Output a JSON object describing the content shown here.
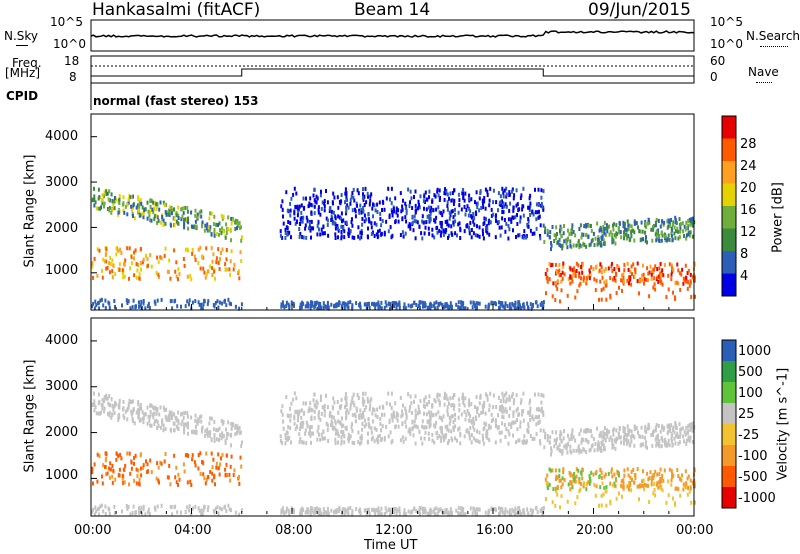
{
  "header": {
    "station": "Hankasalmi (fitACF)",
    "beam": "Beam 14",
    "date": "09/Jun/2015"
  },
  "panels": {
    "nsky_label": "N.Sky",
    "nsky_scale": {
      "top": "10^5",
      "bottom": "10^0"
    },
    "nsearch_label": "N.Search",
    "freq_label_top": "Freq.",
    "freq_label_unit": "[MHz]",
    "freq_scale": {
      "top": "18",
      "bottom": "8"
    },
    "nave_scale": {
      "top": "60",
      "bottom": "0"
    },
    "nave_label": "Nave",
    "cpid_label": "CPID",
    "cpid_text": "normal (fast stereo) 153"
  },
  "colors": {
    "power": [
      "#0000e6",
      "#2e5fb8",
      "#3c8a3c",
      "#6fae3a",
      "#e6d200",
      "#ffa020",
      "#ff5a00",
      "#e60000"
    ],
    "velocity": [
      "#e60000",
      "#ff5a00",
      "#f59a2a",
      "#f2c230",
      "#c4c4c4",
      "#5fc43a",
      "#2f9e45",
      "#2a5fb8"
    ]
  },
  "chart_data": [
    {
      "type": "heatmap",
      "title": "Power",
      "ylabel": "Slant Range [km]",
      "xlabel": "",
      "xlim": [
        "00:00",
        "00:00"
      ],
      "ylim": [
        180,
        4500
      ],
      "yticks": [
        "1000",
        "2000",
        "3000",
        "4000"
      ],
      "colorbar": {
        "label": "Power [dB]",
        "ticks": [
          "4",
          "8",
          "12",
          "16",
          "20",
          "24",
          "28"
        ],
        "range": [
          0,
          30
        ]
      },
      "echo_regions": [
        {
          "t0": 0.0,
          "t1": 6.0,
          "r0": 600,
          "r1": 2900,
          "level": 9,
          "note": "daytime band descending from 2700 km to 1900 km"
        },
        {
          "t0": 0.7,
          "t1": 5.6,
          "r0": 900,
          "r1": 1600,
          "level": 22,
          "note": "patches near 1000-1500 km"
        },
        {
          "t0": 7.5,
          "t1": 18.0,
          "r0": 1700,
          "r1": 3000,
          "level": 6,
          "note": "weak scattered echoes"
        },
        {
          "t0": 18.0,
          "t1": 24.0,
          "r0": 1400,
          "r1": 2200,
          "level": 12,
          "note": "band 1600-2100 km"
        },
        {
          "t0": 19.5,
          "t1": 23.0,
          "r0": 800,
          "r1": 1200,
          "level": 26,
          "note": "strong echoes near 1000 km"
        }
      ]
    },
    {
      "type": "heatmap",
      "title": "Velocity",
      "ylabel": "Slant Range [km]",
      "xlabel": "Time UT",
      "xlim": [
        "00:00",
        "00:00"
      ],
      "ylim": [
        180,
        4500
      ],
      "yticks": [
        "1000",
        "2000",
        "3000",
        "4000"
      ],
      "xticks": [
        "00:00",
        "04:00",
        "08:00",
        "12:00",
        "16:00",
        "20:00",
        "00:00"
      ],
      "colorbar": {
        "label": "Velocity [m s^-1]",
        "ticks": [
          "1000",
          "500",
          "100",
          "25",
          "-25",
          "-100",
          "-500",
          "-1000"
        ]
      },
      "echo_regions": [
        {
          "t0": 0.0,
          "t1": 6.0,
          "r0": 1800,
          "r1": 2800,
          "velocity": 0,
          "note": "ground scatter (grey)"
        },
        {
          "t0": 0.8,
          "t1": 4.2,
          "r0": 700,
          "r1": 2000,
          "velocity": -150,
          "note": "negative velocities (orange)"
        },
        {
          "t0": 7.5,
          "t1": 24.0,
          "r0": 1700,
          "r1": 2800,
          "velocity": 0,
          "note": "ground scatter (grey)"
        },
        {
          "t0": 18.5,
          "t1": 23.0,
          "r0": 800,
          "r1": 1300,
          "velocity": -150,
          "note": "orange echoes"
        },
        {
          "t0": 18.5,
          "t1": 21.0,
          "r0": 850,
          "r1": 1400,
          "velocity": 100,
          "note": "green echoes"
        }
      ]
    }
  ]
}
